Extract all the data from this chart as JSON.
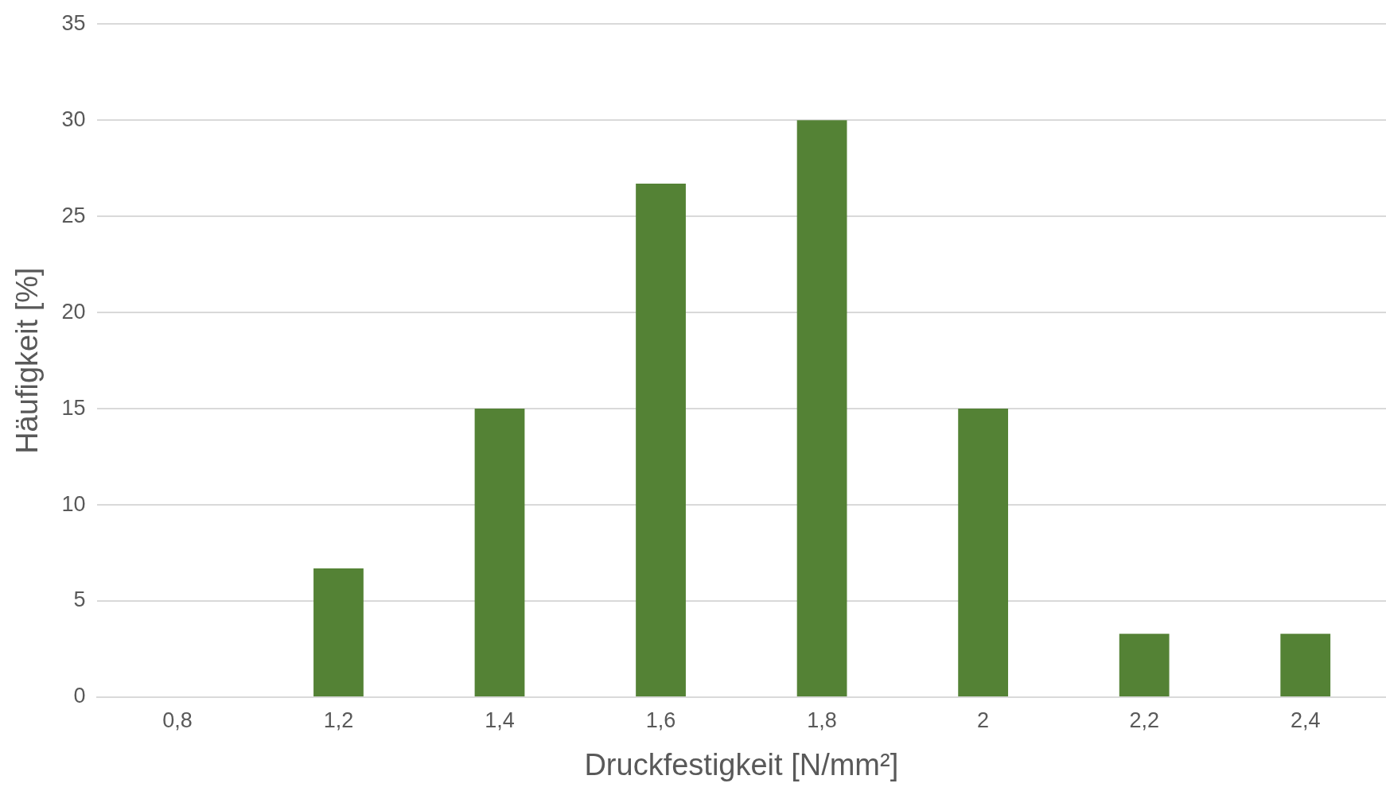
{
  "chart_data": {
    "type": "bar",
    "xlabel": "Druckfestigkeit [N/mm²]",
    "ylabel": "Häufigkeit [%]",
    "categories": [
      "0,8",
      "1,2",
      "1,4",
      "1,6",
      "1,8",
      "2",
      "2,2",
      "2,4"
    ],
    "values": [
      0,
      6.7,
      15,
      26.7,
      30,
      15,
      3.3,
      3.3
    ],
    "color": "#548235",
    "ylim": [
      0,
      35
    ],
    "yticks": [
      0,
      5,
      10,
      15,
      20,
      25,
      30,
      35
    ],
    "grid": "y",
    "legend": false
  }
}
